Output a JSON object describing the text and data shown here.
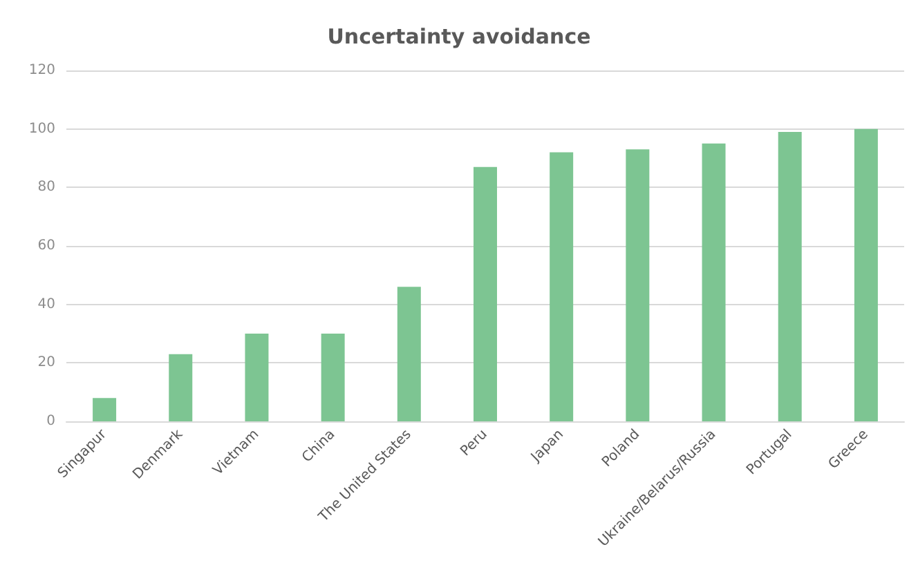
{
  "chart_data": {
    "type": "bar",
    "title": "Uncertainty avoidance",
    "categories": [
      "Singapur",
      "Denmark",
      "Vietnam",
      "China",
      "The United States",
      "Peru",
      "Japan",
      "Poland",
      "Ukraine/Belarus/Russia",
      "Portugal",
      "Greece"
    ],
    "values": [
      8,
      23,
      30,
      30,
      46,
      87,
      92,
      93,
      95,
      99,
      100
    ],
    "color": "#7dc592",
    "ylim": [
      0,
      120
    ],
    "yticks": [
      0,
      20,
      40,
      60,
      80,
      100,
      120
    ],
    "grid": "y"
  }
}
